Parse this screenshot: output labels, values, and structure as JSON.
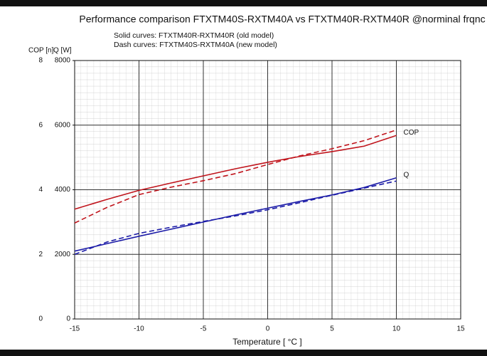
{
  "chart_data": {
    "type": "line",
    "title": "Performance comparison FTXTM40S-RXTM40A vs FTXTM40R-RXTM40R @norminal frqnc",
    "annotations": [
      "Solid curves: FTXTM40R-RXTM40R  (old model)",
      "Dash curves: FTXTM40S-RXTM40A  (new model)"
    ],
    "ylabel": "COP [n]",
    "y2label": "Q [W]",
    "xlabel": "Temperature [ °C ]",
    "x": [
      -15,
      -12.5,
      -10,
      -7.5,
      -5,
      -2.5,
      0,
      2.5,
      5,
      7.5,
      10
    ],
    "series": [
      {
        "name": "COP",
        "color": "#c0141c",
        "dash": false,
        "values": [
          3.4,
          3.7,
          3.98,
          4.21,
          4.43,
          4.65,
          4.85,
          5.03,
          5.18,
          5.35,
          5.68
        ]
      },
      {
        "color": "#c0141c",
        "dash": true,
        "values": [
          2.97,
          3.45,
          3.85,
          4.08,
          4.28,
          4.5,
          4.78,
          5.05,
          5.27,
          5.52,
          5.85
        ]
      },
      {
        "name": "Q",
        "color": "#1c1ca8",
        "dash": false,
        "axis": "y2",
        "values": [
          2100,
          2330,
          2560,
          2780,
          3000,
          3220,
          3430,
          3640,
          3840,
          4070,
          4370
        ]
      },
      {
        "color": "#1c1ca8",
        "dash": true,
        "axis": "y2",
        "values": [
          2000,
          2380,
          2650,
          2840,
          3020,
          3190,
          3380,
          3600,
          3830,
          4050,
          4270
        ]
      }
    ],
    "xlim": [
      -15,
      15
    ],
    "xticks": [
      -15,
      -10,
      -5,
      0,
      5,
      10,
      15
    ],
    "ylim": [
      0,
      8
    ],
    "yticks": [
      0,
      2,
      4,
      6,
      8
    ],
    "y2lim": [
      0,
      8000
    ],
    "y2ticks": [
      0,
      2000,
      4000,
      6000,
      8000
    ],
    "grid": true
  }
}
